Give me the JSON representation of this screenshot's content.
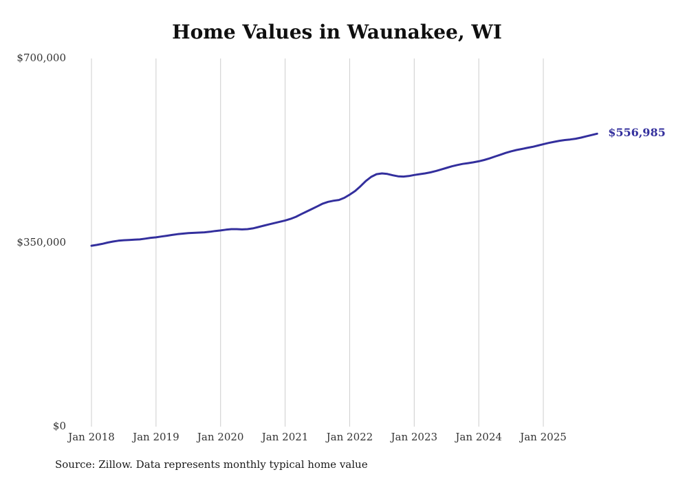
{
  "chart_data": {
    "type": "line",
    "title": "Home Values in Waunakee, WI",
    "ylabel": "",
    "xlabel": "",
    "ylim": [
      0,
      700000
    ],
    "grid": "vertical-only",
    "legend": "none",
    "end_label": "$556,985",
    "line_color": "#332f9d",
    "gridline_color": "#cccccc",
    "yticks": [
      {
        "value": 0,
        "label": "$0"
      },
      {
        "value": 350000,
        "label": "$350,000"
      },
      {
        "value": 700000,
        "label": "$700,000"
      }
    ],
    "xticks": [
      {
        "month": "2018-01",
        "label": "Jan 2018"
      },
      {
        "month": "2019-01",
        "label": "Jan 2019"
      },
      {
        "month": "2020-01",
        "label": "Jan 2020"
      },
      {
        "month": "2021-01",
        "label": "Jan 2021"
      },
      {
        "month": "2022-01",
        "label": "Jan 2022"
      },
      {
        "month": "2023-01",
        "label": "Jan 2023"
      },
      {
        "month": "2024-01",
        "label": "Jan 2024"
      },
      {
        "month": "2025-01",
        "label": "Jan 2025"
      }
    ],
    "months": [
      "2018-01",
      "2018-02",
      "2018-03",
      "2018-04",
      "2018-05",
      "2018-06",
      "2018-07",
      "2018-08",
      "2018-09",
      "2018-10",
      "2018-11",
      "2018-12",
      "2019-01",
      "2019-02",
      "2019-03",
      "2019-04",
      "2019-05",
      "2019-06",
      "2019-07",
      "2019-08",
      "2019-09",
      "2019-10",
      "2019-11",
      "2019-12",
      "2020-01",
      "2020-02",
      "2020-03",
      "2020-04",
      "2020-05",
      "2020-06",
      "2020-07",
      "2020-08",
      "2020-09",
      "2020-10",
      "2020-11",
      "2020-12",
      "2021-01",
      "2021-02",
      "2021-03",
      "2021-04",
      "2021-05",
      "2021-06",
      "2021-07",
      "2021-08",
      "2021-09",
      "2021-10",
      "2021-11",
      "2021-12",
      "2022-01",
      "2022-02",
      "2022-03",
      "2022-04",
      "2022-05",
      "2022-06",
      "2022-07",
      "2022-08",
      "2022-09",
      "2022-10",
      "2022-11",
      "2022-12",
      "2023-01",
      "2023-02",
      "2023-03",
      "2023-04",
      "2023-05",
      "2023-06",
      "2023-07",
      "2023-08",
      "2023-09",
      "2023-10",
      "2023-11",
      "2023-12",
      "2024-01",
      "2024-02",
      "2024-03",
      "2024-04",
      "2024-05",
      "2024-06",
      "2024-07",
      "2024-08",
      "2024-09",
      "2024-10",
      "2024-11",
      "2024-12",
      "2025-01",
      "2025-02",
      "2025-03",
      "2025-04",
      "2025-05",
      "2025-06",
      "2025-07",
      "2025-08",
      "2025-09",
      "2025-10",
      "2025-11"
    ],
    "series": [
      {
        "name": "Monthly typical home value",
        "values": [
          344000,
          345500,
          347500,
          350000,
          352000,
          353500,
          354500,
          355000,
          355500,
          356000,
          357500,
          359000,
          360000,
          361500,
          363000,
          364500,
          366000,
          367000,
          368000,
          368500,
          369000,
          369500,
          370500,
          372000,
          373000,
          374500,
          375500,
          375500,
          375000,
          375500,
          377000,
          379500,
          382000,
          384500,
          387000,
          389500,
          392000,
          395000,
          399000,
          404000,
          409000,
          414000,
          419000,
          424000,
          427500,
          429500,
          431000,
          435000,
          441000,
          448000,
          457000,
          467000,
          475000,
          480000,
          481500,
          480500,
          478000,
          476000,
          475500,
          476500,
          478500,
          480000,
          481500,
          483500,
          486000,
          489000,
          492000,
          495000,
          497500,
          499500,
          501000,
          502500,
          504500,
          507000,
          510000,
          513500,
          517000,
          520500,
          523500,
          526000,
          528000,
          530000,
          532000,
          534500,
          537000,
          539500,
          541500,
          543500,
          545000,
          546000,
          547500,
          549500,
          552000,
          554500,
          556985
        ]
      }
    ]
  },
  "footer": {
    "source_text": "Source: Zillow. Data represents monthly typical home value"
  }
}
